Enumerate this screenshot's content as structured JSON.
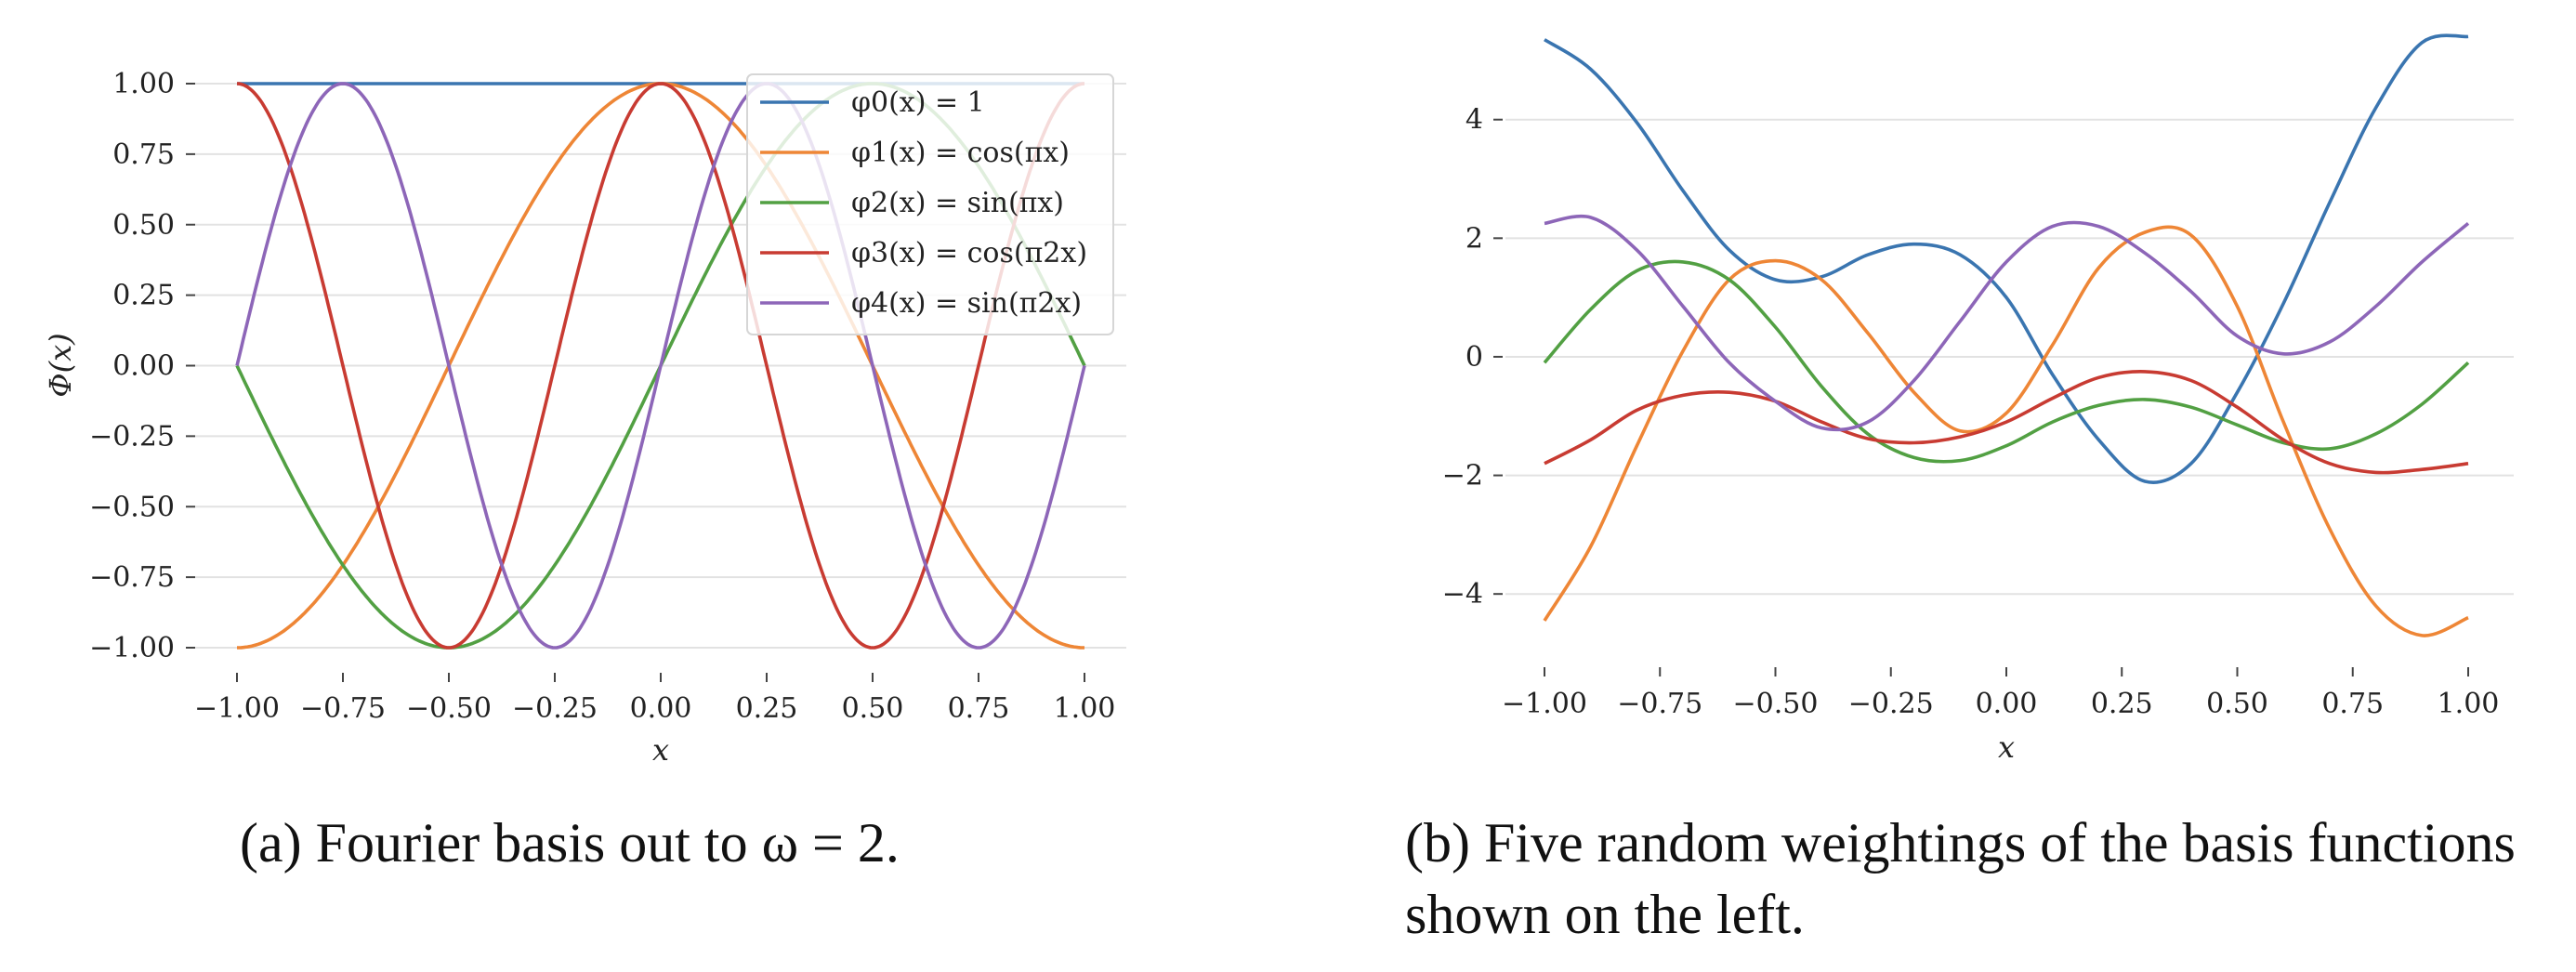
{
  "captions": {
    "a": "(a) Fourier basis out to ω = 2.",
    "b_line1": "(b) Five random weightings of the basis functions",
    "b_line2": "shown on the left."
  },
  "chart_data": [
    {
      "type": "line",
      "xlabel": "x",
      "ylabel": "Φ(x)",
      "xlim": [
        -1,
        1
      ],
      "ylim": [
        -1,
        1
      ],
      "xticks": [
        "−1.00",
        "−0.75",
        "−0.50",
        "−0.25",
        "0.00",
        "0.25",
        "0.50",
        "0.75",
        "1.00"
      ],
      "yticks": [
        "1.00",
        "0.75",
        "0.50",
        "0.25",
        "0.00",
        "−0.25",
        "−0.50",
        "−0.75",
        "−1.00"
      ],
      "grid": "horizontal",
      "legend_position": "top-right",
      "series": [
        {
          "name": "φ0(x) = 1",
          "color": "#3a75b0",
          "function": "1"
        },
        {
          "name": "φ1(x) = cos(πx)",
          "color": "#ee8636",
          "function": "cos(pi x)"
        },
        {
          "name": "φ2(x) = sin(πx)",
          "color": "#52a043",
          "function": "sin(pi x)"
        },
        {
          "name": "φ3(x) = cos(π2x)",
          "color": "#c83b32",
          "function": "cos(2 pi x)"
        },
        {
          "name": "φ4(x) = sin(π2x)",
          "color": "#8d66b8",
          "function": "sin(2 pi x)"
        }
      ]
    },
    {
      "type": "line",
      "xlabel": "x",
      "ylabel": "",
      "xlim": [
        -1,
        1
      ],
      "ylim": [
        -5,
        5.5
      ],
      "xticks": [
        "−1.00",
        "−0.75",
        "−0.50",
        "−0.25",
        "0.00",
        "0.25",
        "0.50",
        "0.75",
        "1.00"
      ],
      "yticks": [
        "4",
        "2",
        "0",
        "−2",
        "−4"
      ],
      "grid": "horizontal",
      "series": [
        {
          "color": "#3a75b0",
          "x": [
            -1.0,
            -0.9,
            -0.8,
            -0.7,
            -0.6,
            -0.5,
            -0.4,
            -0.3,
            -0.2,
            -0.1,
            0.0,
            0.1,
            0.2,
            0.3,
            0.4,
            0.5,
            0.6,
            0.7,
            0.8,
            0.9,
            1.0
          ],
          "y": [
            5.35,
            4.85,
            3.95,
            2.8,
            1.8,
            1.3,
            1.35,
            1.72,
            1.9,
            1.72,
            1.0,
            -0.3,
            -1.4,
            -2.1,
            -1.8,
            -0.6,
            0.9,
            2.6,
            4.2,
            5.3,
            5.4
          ]
        },
        {
          "color": "#ee8636",
          "x": [
            -1.0,
            -0.9,
            -0.8,
            -0.7,
            -0.6,
            -0.5,
            -0.4,
            -0.3,
            -0.2,
            -0.1,
            0.0,
            0.1,
            0.2,
            0.3,
            0.4,
            0.5,
            0.6,
            0.7,
            0.8,
            0.9,
            1.0
          ],
          "y": [
            -4.45,
            -3.2,
            -1.5,
            0.1,
            1.3,
            1.62,
            1.3,
            0.4,
            -0.6,
            -1.25,
            -0.95,
            0.2,
            1.5,
            2.1,
            2.05,
            0.85,
            -1.1,
            -2.9,
            -4.2,
            -4.7,
            -4.4
          ]
        },
        {
          "color": "#52a043",
          "x": [
            -1.0,
            -0.9,
            -0.8,
            -0.7,
            -0.6,
            -0.5,
            -0.4,
            -0.3,
            -0.2,
            -0.1,
            0.0,
            0.1,
            0.2,
            0.3,
            0.4,
            0.5,
            0.6,
            0.7,
            0.8,
            0.9,
            1.0
          ],
          "y": [
            -0.1,
            0.8,
            1.45,
            1.6,
            1.3,
            0.5,
            -0.5,
            -1.3,
            -1.7,
            -1.75,
            -1.5,
            -1.1,
            -0.82,
            -0.72,
            -0.85,
            -1.15,
            -1.45,
            -1.55,
            -1.3,
            -0.8,
            -0.1
          ]
        },
        {
          "color": "#c83b32",
          "x": [
            -1.0,
            -0.9,
            -0.8,
            -0.7,
            -0.6,
            -0.5,
            -0.4,
            -0.3,
            -0.2,
            -0.1,
            0.0,
            0.1,
            0.2,
            0.3,
            0.4,
            0.5,
            0.6,
            0.7,
            0.8,
            0.9,
            1.0
          ],
          "y": [
            -1.8,
            -1.4,
            -0.9,
            -0.65,
            -0.6,
            -0.75,
            -1.1,
            -1.38,
            -1.45,
            -1.35,
            -1.1,
            -0.7,
            -0.35,
            -0.25,
            -0.4,
            -0.85,
            -1.4,
            -1.8,
            -1.95,
            -1.9,
            -1.8
          ]
        },
        {
          "color": "#8d66b8",
          "x": [
            -1.0,
            -0.9,
            -0.8,
            -0.7,
            -0.6,
            -0.5,
            -0.4,
            -0.3,
            -0.2,
            -0.1,
            0.0,
            0.1,
            0.2,
            0.3,
            0.4,
            0.5,
            0.6,
            0.7,
            0.8,
            0.9,
            1.0
          ],
          "y": [
            2.25,
            2.35,
            1.8,
            0.85,
            -0.1,
            -0.75,
            -1.2,
            -1.1,
            -0.4,
            0.6,
            1.6,
            2.2,
            2.2,
            1.75,
            1.1,
            0.35,
            0.05,
            0.25,
            0.85,
            1.6,
            2.25
          ]
        }
      ]
    }
  ]
}
